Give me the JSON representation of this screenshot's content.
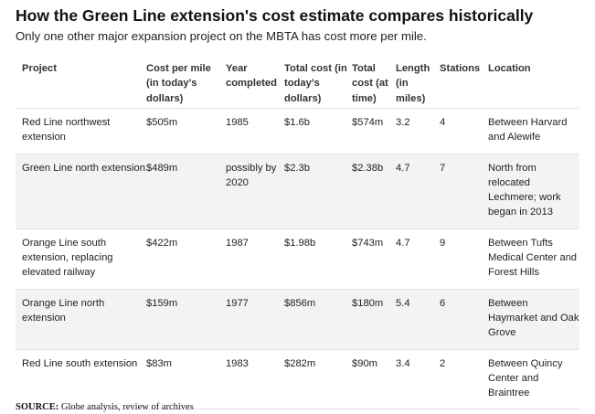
{
  "title": "How the Green Line extension's cost estimate compares historically",
  "subtitle": "Only one other major expansion project on the MBTA has cost more per mile.",
  "table": {
    "headers": [
      "Project",
      "Cost per mile (in today's dollars)",
      "Year completed",
      "Total cost (in today's dollars)",
      "Total cost (at time)",
      "Length (in miles)",
      "Stations",
      "Location"
    ],
    "rows": [
      [
        "Red Line northwest extension",
        "$505m",
        "1985",
        "$1.6b",
        "$574m",
        "3.2",
        "4",
        "Between Harvard and Alewife"
      ],
      [
        "Green Line north extension",
        "$489m",
        "possibly by 2020",
        "$2.3b",
        "$2.38b",
        "4.7",
        "7",
        "North from relocated Lechmere; work began in 2013"
      ],
      [
        "Orange Line south extension, replacing elevated railway",
        "$422m",
        "1987",
        "$1.98b",
        "$743m",
        "4.7",
        "9",
        "Between Tufts Medical Center and Forest Hills"
      ],
      [
        "Orange Line north extension",
        "$159m",
        "1977",
        "$856m",
        "$180m",
        "5.4",
        "6",
        "Between Haymarket and Oak Grove"
      ],
      [
        "Red Line south extension",
        "$83m",
        "1983",
        "$282m",
        "$90m",
        "3.4",
        "2",
        "Between Quincy Center and Braintree"
      ]
    ]
  },
  "source": {
    "label": "SOURCE:",
    "text": " Globe analysis, review of archives"
  }
}
